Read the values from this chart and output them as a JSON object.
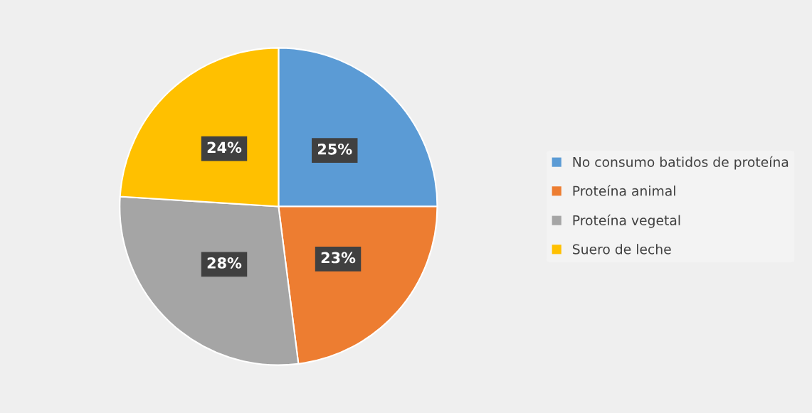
{
  "chart_data": {
    "type": "pie",
    "categories": [
      "No consumo batidos de proteína",
      "Proteína animal",
      "Proteína vegetal",
      "Suero de leche"
    ],
    "values": [
      25,
      23,
      28,
      24
    ],
    "value_labels": [
      "25%",
      "23%",
      "28%",
      "24%"
    ],
    "colors": [
      "#5b9bd5",
      "#ed7d31",
      "#a5a5a5",
      "#ffc000"
    ],
    "legend": "right"
  }
}
